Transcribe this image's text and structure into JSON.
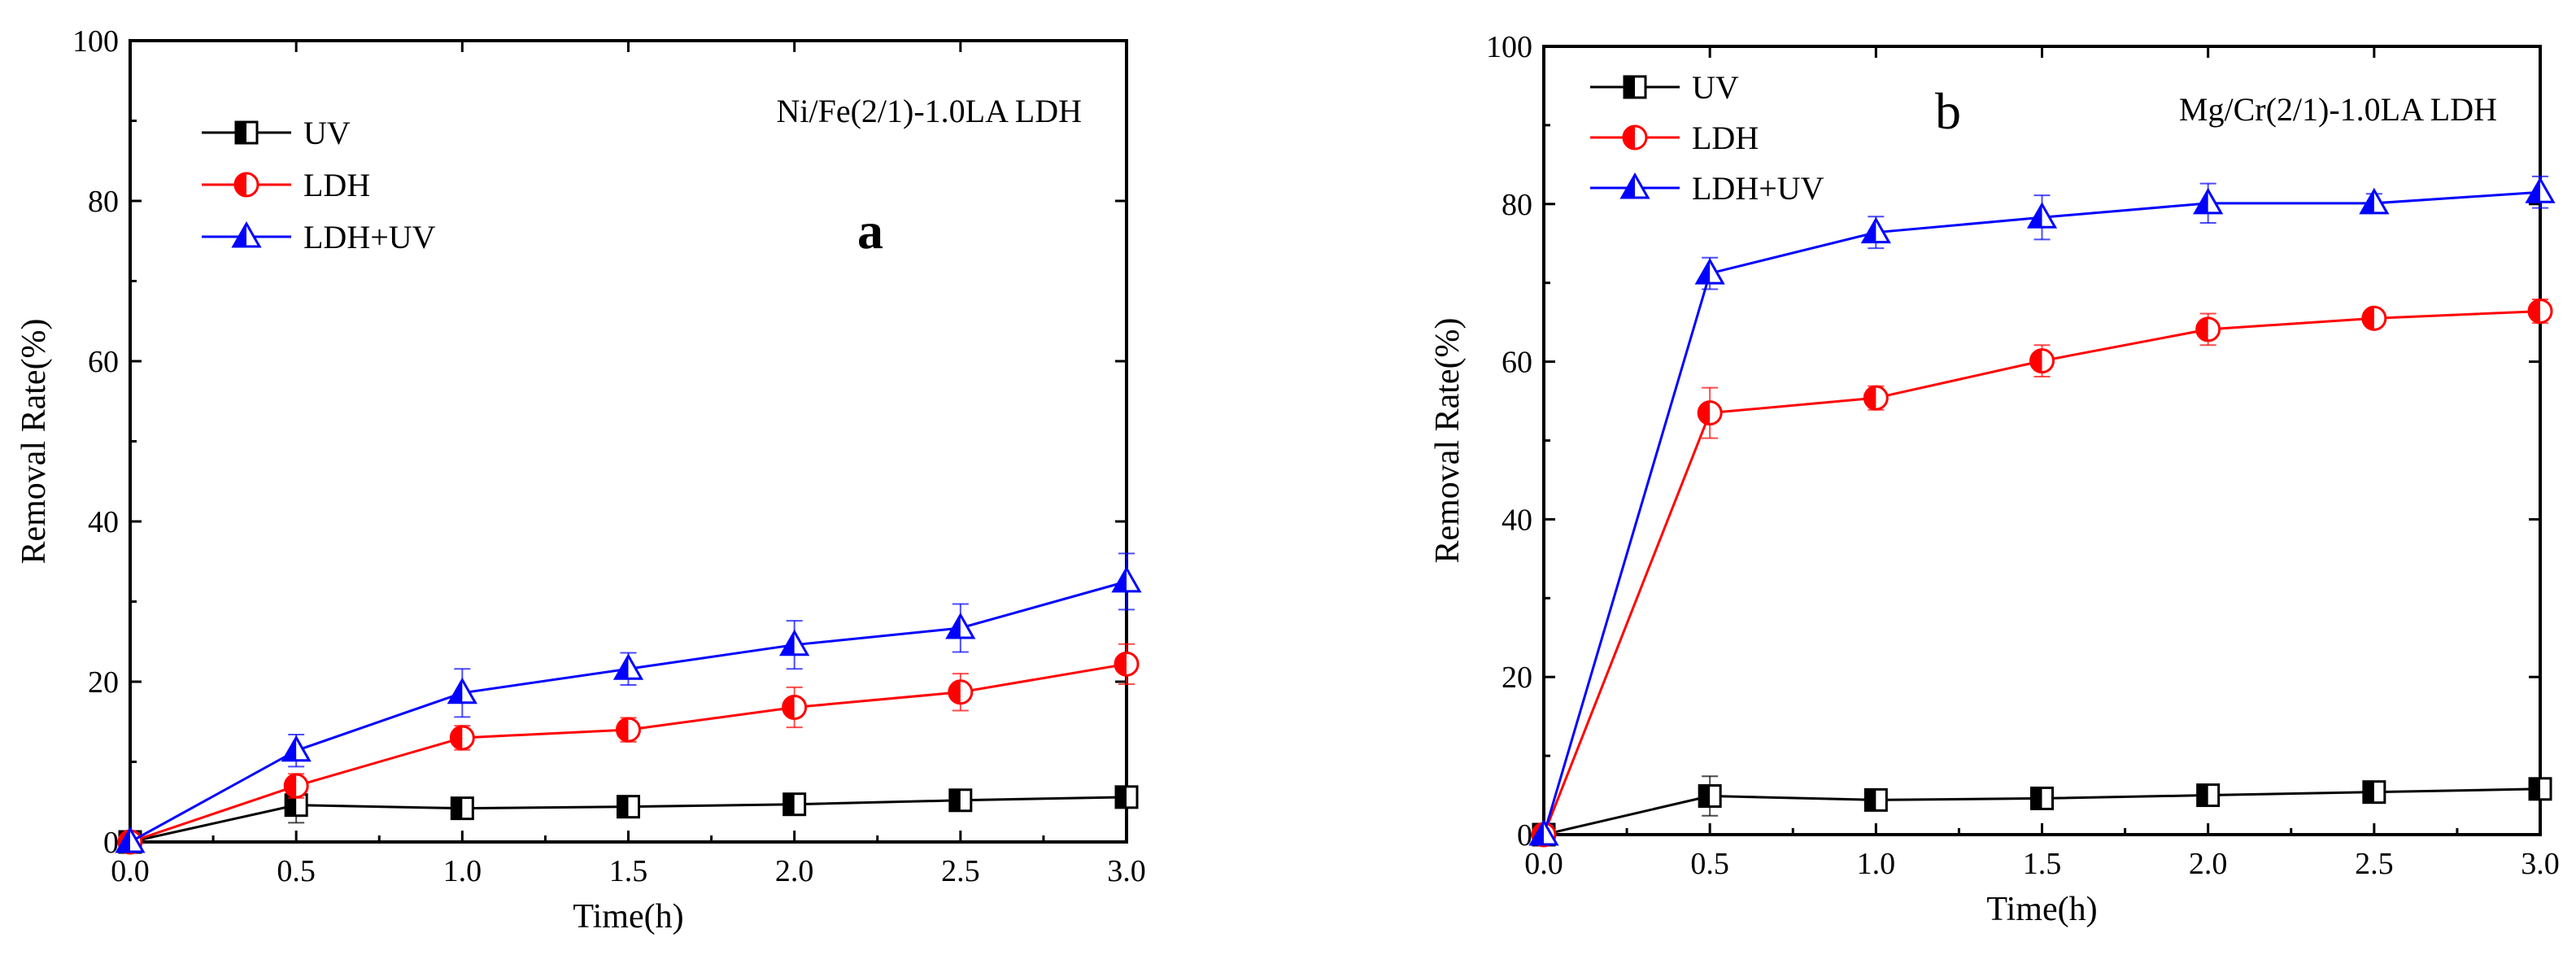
{
  "chart_data": [
    {
      "type": "line",
      "panel_letter": "a",
      "annotation": "Ni/Fe(2/1)-1.0LA LDH",
      "xlabel": "Time(h)",
      "ylabel": "Removal Rate(%)",
      "xlim": [
        0,
        3
      ],
      "ylim": [
        0,
        100
      ],
      "xticks": [
        "0.0",
        "0.5",
        "1.0",
        "1.5",
        "2.0",
        "2.5",
        "3.0"
      ],
      "yticks": [
        "0",
        "20",
        "40",
        "60",
        "80",
        "100"
      ],
      "legend_position": "top-left",
      "x": [
        0,
        0.5,
        1.0,
        1.5,
        2.0,
        2.5,
        3.0
      ],
      "series": [
        {
          "name": "UV",
          "color": "#000000",
          "marker": "square",
          "values": [
            0,
            4.6,
            4.2,
            4.4,
            4.7,
            5.2,
            5.6
          ],
          "errors": [
            0,
            2.2,
            0.8,
            0.8,
            0.8,
            0.8,
            0.8
          ]
        },
        {
          "name": "LDH",
          "color": "#ff0000",
          "marker": "circle",
          "values": [
            0,
            7.0,
            13.0,
            14.0,
            16.8,
            18.7,
            22.2
          ],
          "errors": [
            0,
            1.5,
            1.5,
            1.5,
            2.5,
            2.3,
            2.5
          ]
        },
        {
          "name": "LDH+UV",
          "color": "#0000ff",
          "marker": "triangle",
          "values": [
            0,
            11.4,
            18.6,
            21.6,
            24.6,
            26.7,
            32.5
          ],
          "errors": [
            0,
            2.0,
            3.0,
            2.0,
            3.0,
            3.0,
            3.5
          ]
        }
      ]
    },
    {
      "type": "line",
      "panel_letter": "b",
      "annotation": "Mg/Cr(2/1)-1.0LA LDH",
      "xlabel": "Time(h)",
      "ylabel": "Removal Rate(%)",
      "xlim": [
        0,
        3
      ],
      "ylim": [
        0,
        100
      ],
      "xticks": [
        "0.0",
        "0.5",
        "1.0",
        "1.5",
        "2.0",
        "2.5",
        "3.0"
      ],
      "yticks": [
        "0",
        "20",
        "40",
        "60",
        "80",
        "100"
      ],
      "legend_position": "top-left",
      "x": [
        0,
        0.5,
        1.0,
        1.5,
        2.0,
        2.5,
        3.0
      ],
      "series": [
        {
          "name": "UV",
          "color": "#000000",
          "marker": "square",
          "values": [
            0,
            4.9,
            4.4,
            4.6,
            5.0,
            5.4,
            5.8
          ],
          "errors": [
            0,
            2.5,
            0.8,
            0.8,
            0.8,
            0.8,
            0.8
          ]
        },
        {
          "name": "LDH",
          "color": "#ff0000",
          "marker": "circle",
          "values": [
            0,
            53.5,
            55.4,
            60.1,
            64.1,
            65.5,
            66.4
          ],
          "errors": [
            0,
            3.2,
            1.5,
            2.0,
            2.0,
            1.0,
            1.5
          ]
        },
        {
          "name": "LDH+UV",
          "color": "#0000ff",
          "marker": "triangle",
          "values": [
            0,
            71.2,
            76.4,
            78.3,
            80.1,
            80.1,
            81.5
          ],
          "errors": [
            0,
            2.0,
            2.0,
            2.8,
            2.5,
            1.2,
            2.0
          ]
        }
      ]
    }
  ]
}
